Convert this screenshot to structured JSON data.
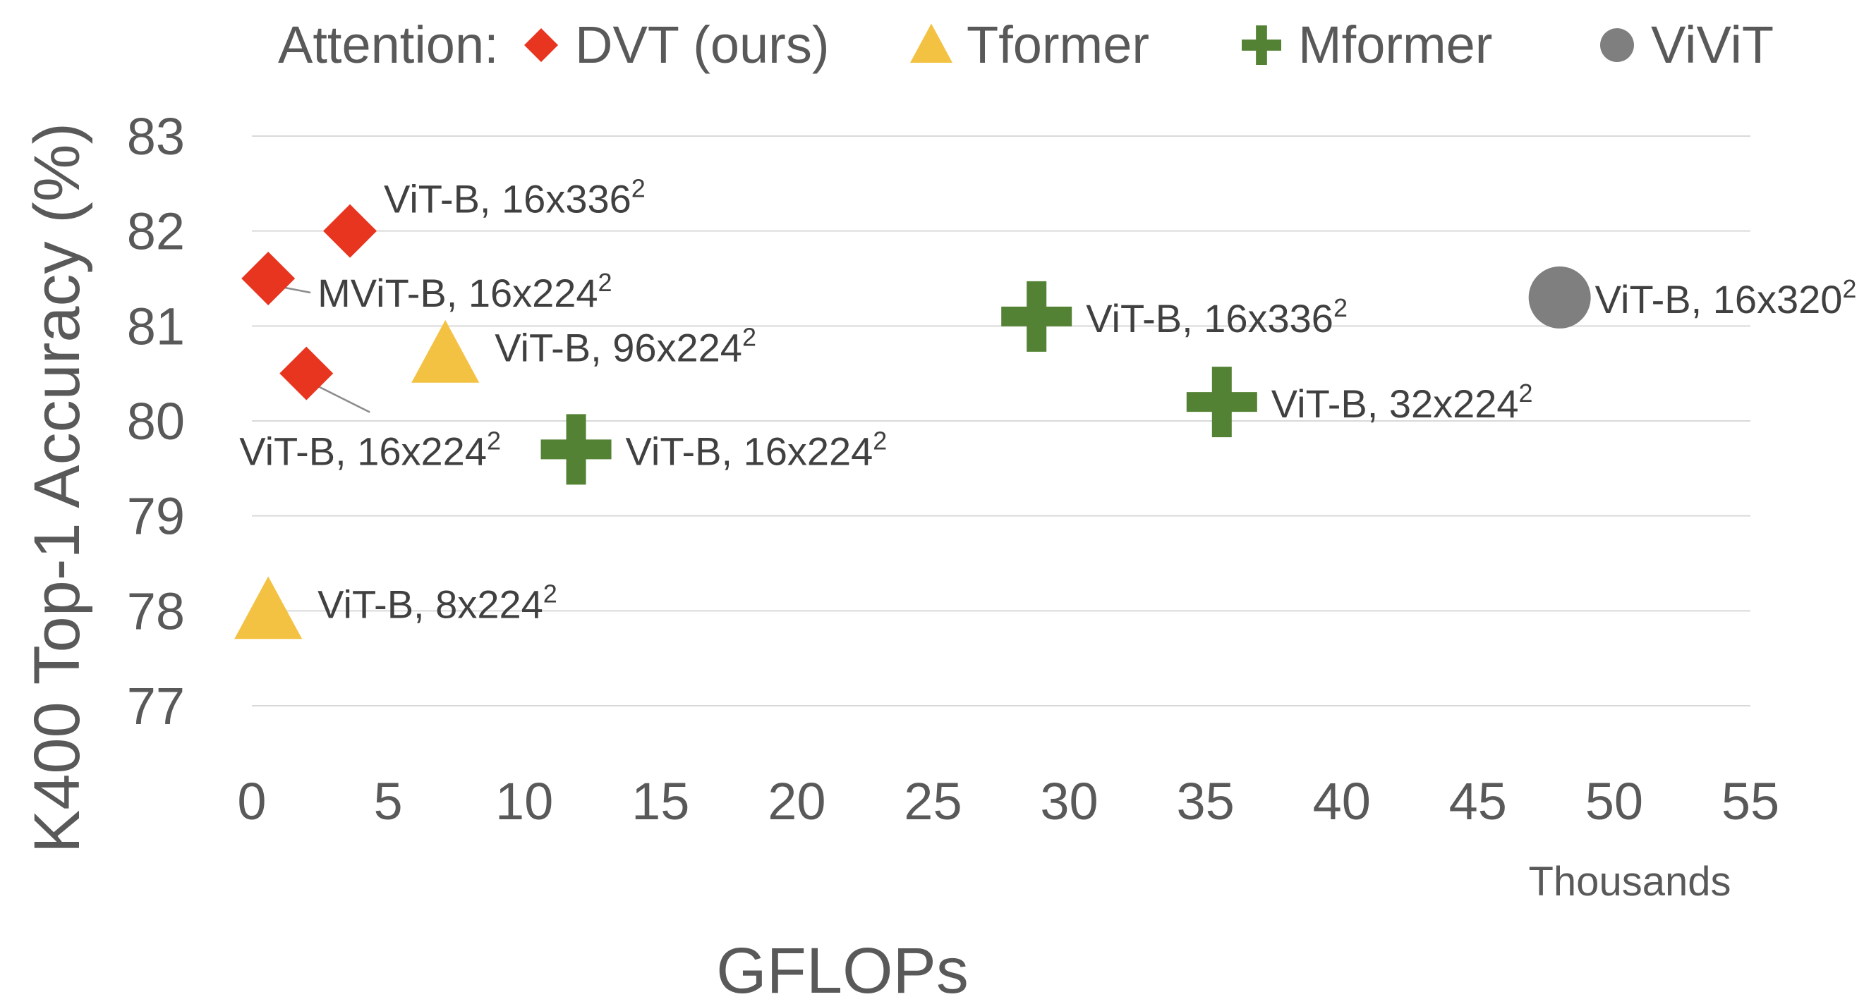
{
  "chart_data": {
    "type": "scatter",
    "xlabel": "GFLOPs",
    "ylabel": "K400 Top-1 Accuracy  (%)",
    "x_unit_label": "Thousands",
    "xlim": [
      0,
      55
    ],
    "ylim": [
      77,
      83
    ],
    "x_ticks": [
      "0",
      "5",
      "10",
      "15",
      "20",
      "25",
      "30",
      "35",
      "40",
      "45",
      "50",
      "55"
    ],
    "y_ticks": [
      "77",
      "78",
      "79",
      "80",
      "81",
      "82",
      "83"
    ],
    "grid": "horizontal",
    "legend_position": "top",
    "legend_title": "Attention:",
    "series": [
      {
        "name": "DVT (ours)",
        "marker": "diamond",
        "color": "#e8351f",
        "points": [
          {
            "x": 3.6,
            "y": 82.0,
            "label": "ViT-B, 16x336",
            "sup": "2"
          },
          {
            "x": 0.6,
            "y": 81.5,
            "label": "MViT-B, 16x224",
            "sup": "2"
          },
          {
            "x": 2.0,
            "y": 80.5,
            "label": "ViT-B, 16x224",
            "sup": "2"
          }
        ]
      },
      {
        "name": "Tformer",
        "marker": "triangle",
        "color": "#f4c242",
        "points": [
          {
            "x": 7.1,
            "y": 80.7,
            "label": "ViT-B, 96x224",
            "sup": "2"
          },
          {
            "x": 0.6,
            "y": 78.0,
            "label": "ViT-B, 8x224",
            "sup": "2"
          }
        ]
      },
      {
        "name": "Mformer",
        "marker": "plus",
        "color": "#548235",
        "points": [
          {
            "x": 28.8,
            "y": 81.1,
            "label": "ViT-B, 16x336",
            "sup": "2"
          },
          {
            "x": 35.6,
            "y": 80.2,
            "label": "ViT-B, 32x224",
            "sup": "2"
          },
          {
            "x": 11.9,
            "y": 79.7,
            "label": "ViT-B, 16x224",
            "sup": "2"
          }
        ]
      },
      {
        "name": "ViViT",
        "marker": "circle",
        "color": "#7f7f7f",
        "points": [
          {
            "x": 48.0,
            "y": 81.3,
            "label": "ViT-B, 16x320",
            "sup": "2"
          }
        ]
      }
    ]
  }
}
